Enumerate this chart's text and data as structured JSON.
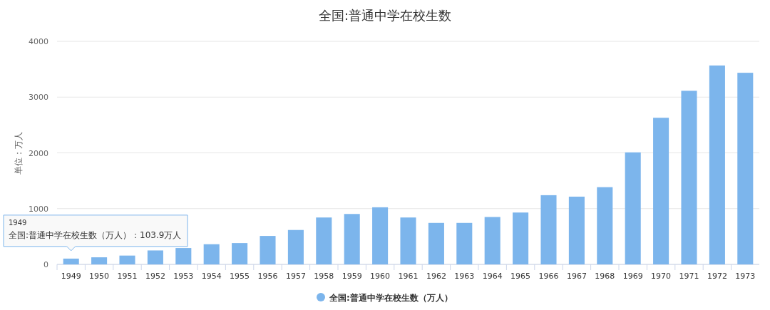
{
  "chart_data": {
    "type": "bar",
    "title": "全国:普通中学在校生数",
    "ylabel": "单位：万人",
    "categories": [
      "1949",
      "1950",
      "1951",
      "1952",
      "1953",
      "1954",
      "1955",
      "1956",
      "1957",
      "1958",
      "1959",
      "1960",
      "1961",
      "1962",
      "1963",
      "1964",
      "1965",
      "1966",
      "1967",
      "1968",
      "1969",
      "1970",
      "1971",
      "1972",
      "1973"
    ],
    "series": [
      {
        "name": "全国:普通中学在校生数（万人）",
        "color": "#7cb5ec",
        "values": [
          103.9,
          127,
          158,
          250,
          293,
          362,
          382,
          510,
          617,
          841,
          904,
          1024,
          841,
          744,
          744,
          850,
          930,
          1241,
          1215,
          1385,
          2009,
          2629,
          3113,
          3567,
          3436
        ]
      }
    ],
    "ylim": [
      0,
      4000
    ],
    "yticks": [
      0,
      1000,
      2000,
      3000,
      4000
    ],
    "grid": "y",
    "legend": "bottom",
    "marker": "circle",
    "annotations": [
      {
        "text": "1949\n全国:普通中学在校生数（万人）：103.9万人",
        "x": "1949",
        "y": 103.9
      }
    ]
  }
}
